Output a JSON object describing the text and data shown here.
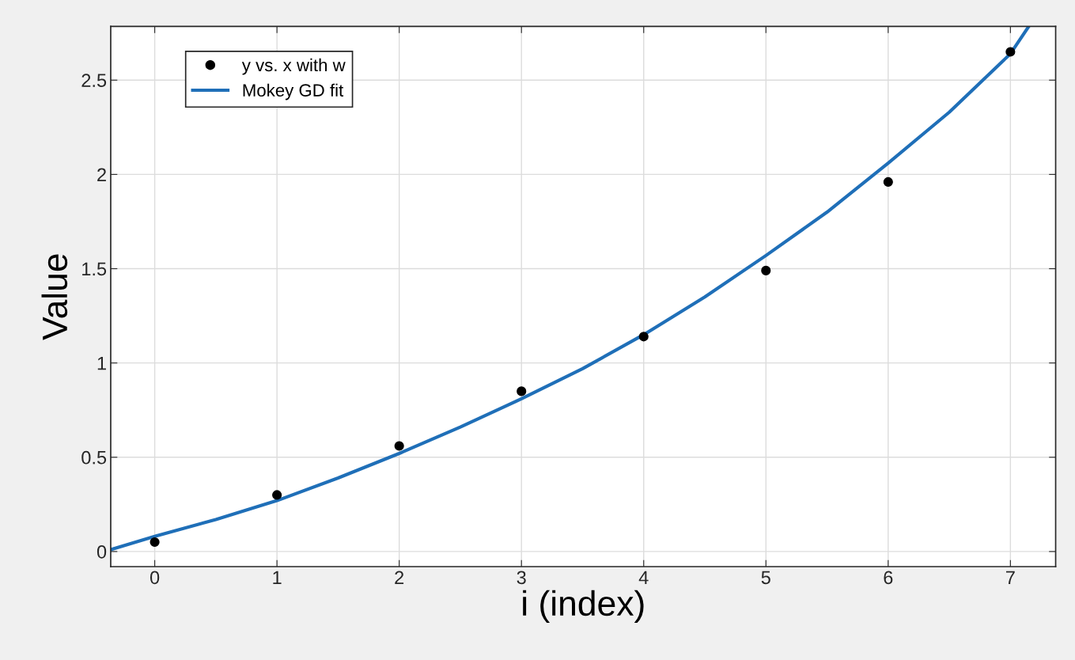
{
  "chart_data": {
    "type": "scatter",
    "xlabel": "i (index)",
    "ylabel": "Value",
    "xlim": [
      -0.36,
      7.37
    ],
    "ylim": [
      -0.08,
      2.785
    ],
    "xticks": [
      0,
      1,
      2,
      3,
      4,
      5,
      6,
      7
    ],
    "yticks": [
      0,
      0.5,
      1,
      1.5,
      2,
      2.5
    ],
    "grid": true,
    "legend": "top left",
    "series": [
      {
        "name": "y vs. x with w",
        "marker": "circle",
        "color": "#000000",
        "x": [
          0,
          1,
          2,
          3,
          4,
          5,
          6,
          7
        ],
        "values": [
          0.05,
          0.3,
          0.56,
          0.85,
          1.14,
          1.49,
          1.96,
          2.65
        ]
      },
      {
        "name": "Mokey GD fit",
        "type": "line",
        "marker": "none",
        "line_style": "solid",
        "color": "#1f6fb8",
        "x": [
          -0.36,
          0,
          0.5,
          1,
          1.5,
          2,
          2.5,
          3,
          3.5,
          4,
          4.5,
          5,
          5.5,
          6,
          6.5,
          7,
          7.15
        ],
        "values": [
          0.01,
          0.08,
          0.17,
          0.27,
          0.39,
          0.52,
          0.66,
          0.81,
          0.97,
          1.15,
          1.35,
          1.57,
          1.8,
          2.06,
          2.33,
          2.64,
          2.785
        ]
      }
    ]
  }
}
